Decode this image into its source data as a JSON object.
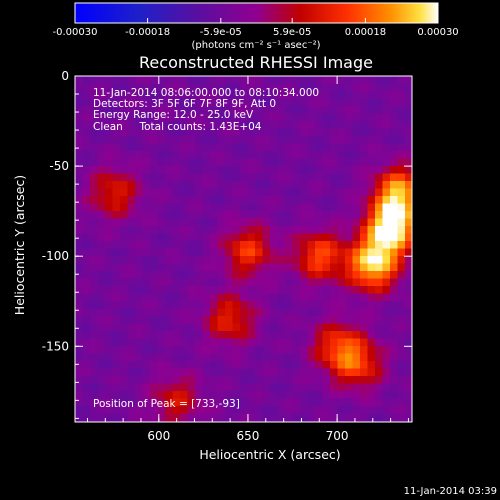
{
  "chart_data": {
    "type": "heatmap",
    "title": "Reconstructed RHESSI Image",
    "xlabel": "Heliocentric X (arcsec)",
    "ylabel": "Heliocentric Y (arcsec)",
    "xlim": [
      553,
      742
    ],
    "ylim": [
      -192,
      0
    ],
    "x_ticks": [
      600,
      650,
      700
    ],
    "y_ticks": [
      0,
      -50,
      -100,
      -150
    ],
    "colorbar": {
      "range": [
        -0.0003,
        0.0003
      ],
      "tick_labels": [
        "-0.00030",
        "-0.00018",
        "-5.9e-05",
        "5.9e-05",
        "0.00018",
        "0.00030"
      ],
      "tick_values": [
        -0.0003,
        -0.00018,
        -5.9e-05,
        5.9e-05,
        0.00018,
        0.0003
      ],
      "unit_label": "(photons cm⁻² s⁻¹ asec⁻²)"
    },
    "annotations": {
      "time_range": "11-Jan-2014 08:06:00.000 to 08:10:34.000",
      "detectors": "Detectors: 3F 5F 6F 7F 8F 9F, Att 0",
      "energy": "Energy Range: 12.0 - 25.0 keV",
      "clean": "Clean     Total counts: 1.43E+04",
      "peak": "Position of Peak = [733,-93]"
    },
    "peak": [
      733,
      -93
    ],
    "bright_regions": [
      {
        "x": 730,
        "y": -85,
        "value": 0.0003
      },
      {
        "x": 720,
        "y": -105,
        "value": 0.00027
      },
      {
        "x": 735,
        "y": -65,
        "value": 0.00024
      },
      {
        "x": 690,
        "y": -100,
        "value": 0.00016
      },
      {
        "x": 650,
        "y": -97,
        "value": 0.00014
      },
      {
        "x": 640,
        "y": -135,
        "value": 0.00012
      },
      {
        "x": 700,
        "y": -150,
        "value": 0.00013
      },
      {
        "x": 712,
        "y": -160,
        "value": 0.00013
      },
      {
        "x": 575,
        "y": -65,
        "value": 0.00011
      },
      {
        "x": 610,
        "y": -180,
        "value": 9e-05
      }
    ],
    "background_level": -5e-05
  },
  "footer": {
    "timestamp": "11-Jan-2014 03:39"
  }
}
